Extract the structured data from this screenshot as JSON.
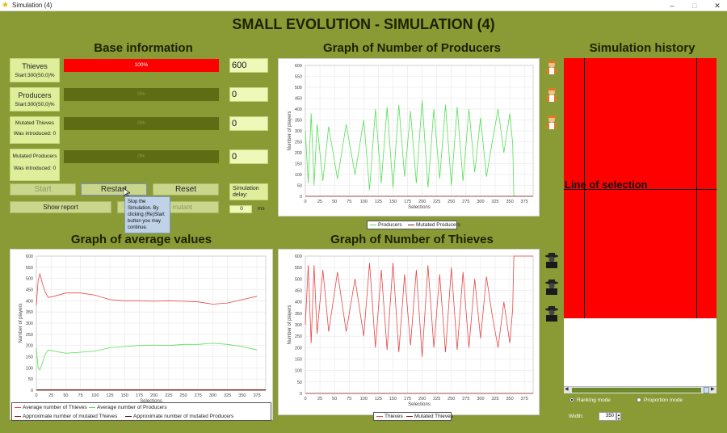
{
  "window": {
    "title": "Simulation (4)",
    "minimize": "–",
    "maximize": "□",
    "close": "✕"
  },
  "main_title": "SMALL EVOLUTION - SIMULATION (4)",
  "base_info": {
    "title": "Base information",
    "thieves": {
      "label": "Thieves",
      "start": "Start:300(50,0)%",
      "bar_text": "100%",
      "bar_fraction": 1.0,
      "value": "600"
    },
    "producers": {
      "label": "Producers",
      "start": "Start:300(50,0)%",
      "bar_text": "0%",
      "bar_fraction": 0.0,
      "value": "0"
    },
    "mutated_thieves": {
      "label": "Mutated Thieves",
      "introduced": "Was introduced: 0",
      "bar_text": "0%",
      "bar_fraction": 0.0,
      "value": "0"
    },
    "mutated_producers": {
      "label": "Mutated Producers",
      "introduced": "Was introduced: 0",
      "bar_text": "0%",
      "bar_fraction": 0.0,
      "value": "0"
    }
  },
  "buttons": {
    "start": "Start",
    "restart": "Restart",
    "reset": "Reset",
    "show_report": "Show report",
    "introduce_mutant": "Introduce mutant"
  },
  "delay": {
    "label": "Simulation delay:",
    "value": "0",
    "unit": "ms"
  },
  "tooltip": "Stop the Simulation. By clicking (Re)Start button you may continue.",
  "charts": {
    "producers": {
      "title": "Graph of Number of Producers",
      "xlabel": "Selections",
      "ylabel": "Number of players"
    },
    "thieves": {
      "title": "Graph of Number of Thieves",
      "xlabel": "Selections",
      "ylabel": "Number of players"
    },
    "average": {
      "title": "Graph of average values",
      "xlabel": "Selections",
      "ylabel": "Number of players"
    }
  },
  "legends": {
    "producers": [
      "Producers",
      "Mutated Producers"
    ],
    "thieves": [
      "Thieves",
      "Mutated Thieves"
    ],
    "average": [
      "Average number of Thieves",
      "Average number of Producers",
      "Approximate number of mutated Thieves",
      "Approximate number of mutated Producers"
    ]
  },
  "history": {
    "title": "Simulation history",
    "line_label": "Line of selection",
    "fill_color": "#ff0000",
    "scroll_left": "◀",
    "scroll_right": "▶"
  },
  "modes": {
    "ranking": "Ranking mode",
    "proportion": "Proportion mode",
    "selected": "ranking"
  },
  "width": {
    "label": "Width:",
    "value": "350"
  },
  "icons": {
    "producer": "farmer-icon",
    "thief": "thief-icon"
  },
  "colors": {
    "bg": "#8a9a35",
    "thieves": "#e84545",
    "producers": "#55e055",
    "mutated": "#8b1a1a"
  },
  "chart_data": [
    {
      "type": "line",
      "title": "Graph of Number of Producers",
      "xlabel": "Selections",
      "ylabel": "Number of players",
      "xlim": [
        0,
        390
      ],
      "ylim": [
        0,
        600
      ],
      "x_ticks": [
        0,
        25,
        50,
        75,
        100,
        125,
        150,
        175,
        200,
        225,
        250,
        275,
        300,
        325,
        350,
        375
      ],
      "y_ticks": [
        0,
        50,
        100,
        150,
        200,
        250,
        300,
        350,
        400,
        450,
        500,
        550,
        600
      ],
      "series": [
        {
          "name": "Producers",
          "color": "#55e055",
          "points": [
            [
              0,
              300
            ],
            [
              5,
              60
            ],
            [
              10,
              380
            ],
            [
              15,
              50
            ],
            [
              20,
              330
            ],
            [
              30,
              70
            ],
            [
              40,
              320
            ],
            [
              55,
              80
            ],
            [
              70,
              330
            ],
            [
              85,
              100
            ],
            [
              100,
              350
            ],
            [
              110,
              30
            ],
            [
              120,
              400
            ],
            [
              130,
              60
            ],
            [
              140,
              410
            ],
            [
              150,
              40
            ],
            [
              160,
              420
            ],
            [
              170,
              90
            ],
            [
              180,
              390
            ],
            [
              190,
              60
            ],
            [
              200,
              440
            ],
            [
              210,
              40
            ],
            [
              220,
              400
            ],
            [
              230,
              80
            ],
            [
              240,
              420
            ],
            [
              250,
              50
            ],
            [
              260,
              410
            ],
            [
              270,
              70
            ],
            [
              280,
              400
            ],
            [
              290,
              110
            ],
            [
              300,
              360
            ],
            [
              310,
              90
            ],
            [
              320,
              250
            ],
            [
              330,
              400
            ],
            [
              340,
              200
            ],
            [
              350,
              380
            ],
            [
              355,
              240
            ],
            [
              357,
              0
            ],
            [
              390,
              0
            ]
          ]
        },
        {
          "name": "Mutated Producers",
          "color": "#8b1a1a",
          "points": [
            [
              0,
              0
            ],
            [
              390,
              0
            ]
          ]
        }
      ]
    },
    {
      "type": "line",
      "title": "Graph of Number of Thieves",
      "xlabel": "Selections",
      "ylabel": "Number of players",
      "xlim": [
        0,
        390
      ],
      "ylim": [
        0,
        600
      ],
      "x_ticks": [
        0,
        25,
        50,
        75,
        100,
        125,
        150,
        175,
        200,
        225,
        250,
        275,
        300,
        325,
        350,
        375
      ],
      "y_ticks": [
        0,
        50,
        100,
        150,
        200,
        250,
        300,
        350,
        400,
        450,
        500,
        550,
        600
      ],
      "series": [
        {
          "name": "Thieves",
          "color": "#e84545",
          "points": [
            [
              0,
              300
            ],
            [
              5,
              560
            ],
            [
              10,
              220
            ],
            [
              15,
              560
            ],
            [
              20,
              260
            ],
            [
              30,
              540
            ],
            [
              40,
              270
            ],
            [
              55,
              530
            ],
            [
              70,
              270
            ],
            [
              85,
              500
            ],
            [
              100,
              250
            ],
            [
              110,
              570
            ],
            [
              120,
              200
            ],
            [
              130,
              540
            ],
            [
              140,
              190
            ],
            [
              150,
              570
            ],
            [
              160,
              180
            ],
            [
              170,
              520
            ],
            [
              180,
              210
            ],
            [
              190,
              540
            ],
            [
              200,
              160
            ],
            [
              210,
              560
            ],
            [
              220,
              200
            ],
            [
              230,
              520
            ],
            [
              240,
              180
            ],
            [
              250,
              550
            ],
            [
              260,
              190
            ],
            [
              270,
              530
            ],
            [
              280,
              200
            ],
            [
              290,
              500
            ],
            [
              300,
              240
            ],
            [
              310,
              510
            ],
            [
              320,
              340
            ],
            [
              330,
              200
            ],
            [
              340,
              400
            ],
            [
              350,
              220
            ],
            [
              355,
              370
            ],
            [
              357,
              600
            ],
            [
              390,
              600
            ]
          ]
        },
        {
          "name": "Mutated Thieves",
          "color": "#8b1a1a",
          "points": [
            [
              0,
              0
            ],
            [
              390,
              0
            ]
          ]
        }
      ]
    },
    {
      "type": "line",
      "title": "Graph of average values",
      "xlabel": "Selections",
      "ylabel": "Number of players",
      "xlim": [
        0,
        390
      ],
      "ylim": [
        0,
        600
      ],
      "x_ticks": [
        0,
        25,
        50,
        75,
        100,
        125,
        150,
        175,
        200,
        225,
        250,
        275,
        300,
        325,
        350,
        375
      ],
      "y_ticks": [
        0,
        50,
        100,
        150,
        200,
        250,
        300,
        350,
        400,
        450,
        500,
        550,
        600
      ],
      "series": [
        {
          "name": "Average number of Thieves",
          "color": "#e84545",
          "points": [
            [
              0,
              380
            ],
            [
              3,
              490
            ],
            [
              6,
              520
            ],
            [
              10,
              480
            ],
            [
              15,
              440
            ],
            [
              20,
              415
            ],
            [
              30,
              420
            ],
            [
              50,
              435
            ],
            [
              75,
              435
            ],
            [
              100,
              425
            ],
            [
              125,
              405
            ],
            [
              150,
              400
            ],
            [
              175,
              400
            ],
            [
              200,
              398
            ],
            [
              225,
              400
            ],
            [
              250,
              398
            ],
            [
              275,
              395
            ],
            [
              300,
              385
            ],
            [
              325,
              390
            ],
            [
              350,
              405
            ],
            [
              375,
              420
            ]
          ]
        },
        {
          "name": "Average number of Producers",
          "color": "#55e055",
          "points": [
            [
              0,
              190
            ],
            [
              3,
              100
            ],
            [
              6,
              90
            ],
            [
              10,
              120
            ],
            [
              15,
              160
            ],
            [
              20,
              180
            ],
            [
              30,
              175
            ],
            [
              50,
              165
            ],
            [
              75,
              170
            ],
            [
              100,
              175
            ],
            [
              125,
              190
            ],
            [
              150,
              195
            ],
            [
              175,
              200
            ],
            [
              200,
              202
            ],
            [
              225,
              200
            ],
            [
              250,
              205
            ],
            [
              275,
              205
            ],
            [
              300,
              210
            ],
            [
              325,
              205
            ],
            [
              350,
              195
            ],
            [
              375,
              180
            ]
          ]
        },
        {
          "name": "Approximate number of mutated Thieves",
          "color": "#8b1a1a",
          "points": [
            [
              0,
              2
            ],
            [
              390,
              2
            ]
          ]
        },
        {
          "name": "Approximate number of mutated Producers",
          "color": "#5a1010",
          "points": [
            [
              0,
              0
            ],
            [
              390,
              0
            ]
          ]
        }
      ]
    }
  ]
}
